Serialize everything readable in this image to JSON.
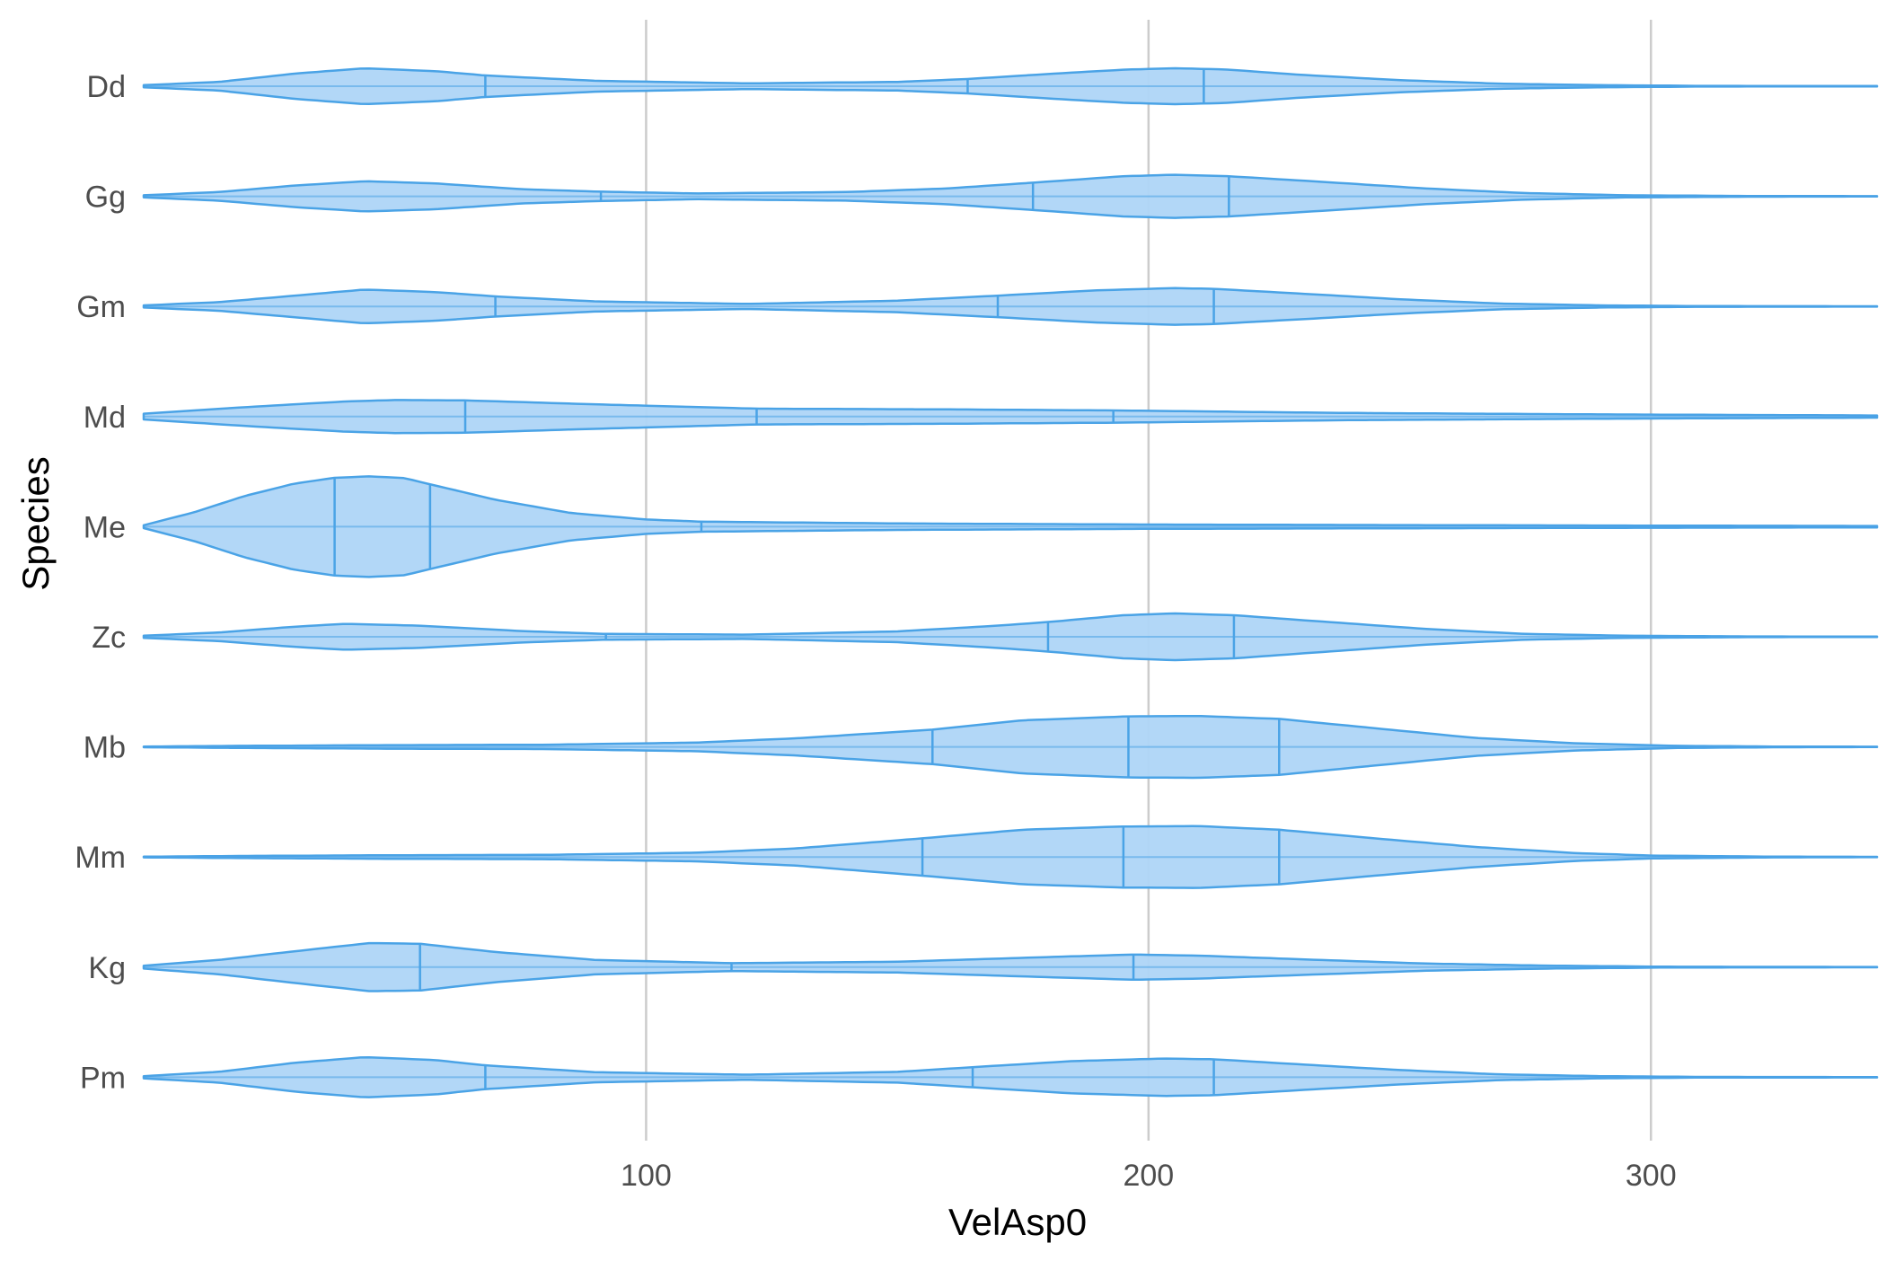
{
  "chart_data": {
    "type": "violin",
    "orientation": "horizontal",
    "title": "",
    "xlabel": "VelAsp0",
    "ylabel": "Species",
    "xlim": [
      0,
      345
    ],
    "x_ticks": [
      100,
      200,
      300
    ],
    "x_tick_labels": [
      "100",
      "200",
      "300"
    ],
    "grid": "vertical major only",
    "legend": "none",
    "colors": {
      "fill": "#aed5f7",
      "stroke": "#4aa3e6",
      "gridline": "#cccccc",
      "tick_text": "#4d4d4d",
      "title_text": "#000000"
    },
    "categories": [
      "Dd",
      "Gg",
      "Gm",
      "Md",
      "Me",
      "Zc",
      "Mb",
      "Mm",
      "Kg",
      "Pm"
    ],
    "series": [
      {
        "category": "Dd",
        "quantiles": [
          68,
          164,
          211
        ],
        "density": [
          [
            0,
            0.03
          ],
          [
            15,
            0.12
          ],
          [
            30,
            0.35
          ],
          [
            44,
            0.5
          ],
          [
            58,
            0.42
          ],
          [
            68,
            0.3
          ],
          [
            90,
            0.15
          ],
          [
            120,
            0.08
          ],
          [
            150,
            0.12
          ],
          [
            164,
            0.2
          ],
          [
            180,
            0.34
          ],
          [
            195,
            0.46
          ],
          [
            205,
            0.5
          ],
          [
            215,
            0.47
          ],
          [
            230,
            0.32
          ],
          [
            250,
            0.17
          ],
          [
            270,
            0.07
          ],
          [
            290,
            0.03
          ],
          [
            310,
            0.01
          ],
          [
            345,
            0.005
          ]
        ]
      },
      {
        "category": "Gg",
        "quantiles": [
          91,
          177,
          216
        ],
        "density": [
          [
            0,
            0.03
          ],
          [
            15,
            0.12
          ],
          [
            30,
            0.3
          ],
          [
            44,
            0.42
          ],
          [
            58,
            0.36
          ],
          [
            75,
            0.2
          ],
          [
            91,
            0.13
          ],
          [
            110,
            0.08
          ],
          [
            140,
            0.12
          ],
          [
            160,
            0.22
          ],
          [
            177,
            0.38
          ],
          [
            195,
            0.56
          ],
          [
            205,
            0.6
          ],
          [
            216,
            0.56
          ],
          [
            235,
            0.4
          ],
          [
            255,
            0.22
          ],
          [
            275,
            0.09
          ],
          [
            295,
            0.03
          ],
          [
            320,
            0.01
          ],
          [
            345,
            0.005
          ]
        ]
      },
      {
        "category": "Gm",
        "quantiles": [
          70,
          170,
          213
        ],
        "density": [
          [
            0,
            0.03
          ],
          [
            15,
            0.12
          ],
          [
            30,
            0.3
          ],
          [
            44,
            0.47
          ],
          [
            58,
            0.4
          ],
          [
            70,
            0.28
          ],
          [
            90,
            0.14
          ],
          [
            120,
            0.07
          ],
          [
            150,
            0.16
          ],
          [
            170,
            0.3
          ],
          [
            190,
            0.45
          ],
          [
            205,
            0.51
          ],
          [
            213,
            0.49
          ],
          [
            230,
            0.36
          ],
          [
            250,
            0.2
          ],
          [
            270,
            0.08
          ],
          [
            290,
            0.03
          ],
          [
            310,
            0.01
          ],
          [
            345,
            0.005
          ]
        ]
      },
      {
        "category": "Md",
        "quantiles": [
          64,
          122,
          193
        ],
        "density": [
          [
            0,
            0.08
          ],
          [
            20,
            0.26
          ],
          [
            40,
            0.42
          ],
          [
            50,
            0.46
          ],
          [
            64,
            0.45
          ],
          [
            90,
            0.34
          ],
          [
            122,
            0.22
          ],
          [
            160,
            0.2
          ],
          [
            193,
            0.17
          ],
          [
            240,
            0.1
          ],
          [
            290,
            0.06
          ],
          [
            345,
            0.03
          ]
        ]
      },
      {
        "category": "Me",
        "quantiles": [
          38,
          57,
          111
        ],
        "density": [
          [
            0,
            0.04
          ],
          [
            10,
            0.4
          ],
          [
            20,
            0.85
          ],
          [
            30,
            1.2
          ],
          [
            38,
            1.36
          ],
          [
            45,
            1.4
          ],
          [
            52,
            1.35
          ],
          [
            57,
            1.18
          ],
          [
            70,
            0.75
          ],
          [
            85,
            0.38
          ],
          [
            100,
            0.2
          ],
          [
            111,
            0.14
          ],
          [
            150,
            0.09
          ],
          [
            200,
            0.06
          ],
          [
            300,
            0.03
          ],
          [
            345,
            0.02
          ]
        ]
      },
      {
        "category": "Zc",
        "quantiles": [
          92,
          180,
          217
        ],
        "density": [
          [
            0,
            0.03
          ],
          [
            15,
            0.12
          ],
          [
            30,
            0.28
          ],
          [
            40,
            0.36
          ],
          [
            55,
            0.31
          ],
          [
            75,
            0.16
          ],
          [
            92,
            0.08
          ],
          [
            120,
            0.06
          ],
          [
            150,
            0.15
          ],
          [
            170,
            0.31
          ],
          [
            180,
            0.41
          ],
          [
            195,
            0.6
          ],
          [
            205,
            0.65
          ],
          [
            217,
            0.6
          ],
          [
            235,
            0.42
          ],
          [
            255,
            0.22
          ],
          [
            275,
            0.08
          ],
          [
            295,
            0.03
          ],
          [
            320,
            0.01
          ],
          [
            345,
            0.005
          ]
        ]
      },
      {
        "category": "Mb",
        "quantiles": [
          157,
          196,
          226
        ],
        "density": [
          [
            0,
            0.01
          ],
          [
            20,
            0.03
          ],
          [
            50,
            0.05
          ],
          [
            80,
            0.06
          ],
          [
            110,
            0.12
          ],
          [
            130,
            0.24
          ],
          [
            157,
            0.48
          ],
          [
            175,
            0.74
          ],
          [
            196,
            0.85
          ],
          [
            210,
            0.86
          ],
          [
            226,
            0.78
          ],
          [
            245,
            0.52
          ],
          [
            265,
            0.25
          ],
          [
            285,
            0.1
          ],
          [
            305,
            0.03
          ],
          [
            325,
            0.01
          ],
          [
            345,
            0.005
          ]
        ]
      },
      {
        "category": "Mm",
        "quantiles": [
          155,
          195,
          226
        ],
        "density": [
          [
            0,
            0.01
          ],
          [
            20,
            0.03
          ],
          [
            50,
            0.05
          ],
          [
            80,
            0.06
          ],
          [
            110,
            0.12
          ],
          [
            130,
            0.24
          ],
          [
            155,
            0.52
          ],
          [
            175,
            0.76
          ],
          [
            195,
            0.85
          ],
          [
            210,
            0.86
          ],
          [
            226,
            0.76
          ],
          [
            245,
            0.52
          ],
          [
            265,
            0.28
          ],
          [
            285,
            0.11
          ],
          [
            300,
            0.04
          ],
          [
            325,
            0.01
          ],
          [
            345,
            0.005
          ]
        ]
      },
      {
        "category": "Kg",
        "quantiles": [
          55,
          117,
          197
        ],
        "density": [
          [
            0,
            0.04
          ],
          [
            15,
            0.2
          ],
          [
            30,
            0.44
          ],
          [
            45,
            0.67
          ],
          [
            55,
            0.65
          ],
          [
            70,
            0.42
          ],
          [
            90,
            0.2
          ],
          [
            117,
            0.11
          ],
          [
            150,
            0.15
          ],
          [
            180,
            0.28
          ],
          [
            197,
            0.35
          ],
          [
            210,
            0.32
          ],
          [
            230,
            0.22
          ],
          [
            255,
            0.1
          ],
          [
            280,
            0.04
          ],
          [
            305,
            0.01
          ],
          [
            345,
            0.005
          ]
        ]
      },
      {
        "category": "Pm",
        "quantiles": [
          68,
          165,
          213
        ],
        "density": [
          [
            0,
            0.03
          ],
          [
            15,
            0.15
          ],
          [
            30,
            0.4
          ],
          [
            44,
            0.56
          ],
          [
            58,
            0.48
          ],
          [
            68,
            0.33
          ],
          [
            90,
            0.14
          ],
          [
            120,
            0.07
          ],
          [
            150,
            0.15
          ],
          [
            165,
            0.28
          ],
          [
            185,
            0.45
          ],
          [
            203,
            0.52
          ],
          [
            213,
            0.5
          ],
          [
            230,
            0.36
          ],
          [
            250,
            0.2
          ],
          [
            270,
            0.08
          ],
          [
            290,
            0.03
          ],
          [
            310,
            0.01
          ],
          [
            345,
            0.005
          ]
        ]
      }
    ]
  }
}
